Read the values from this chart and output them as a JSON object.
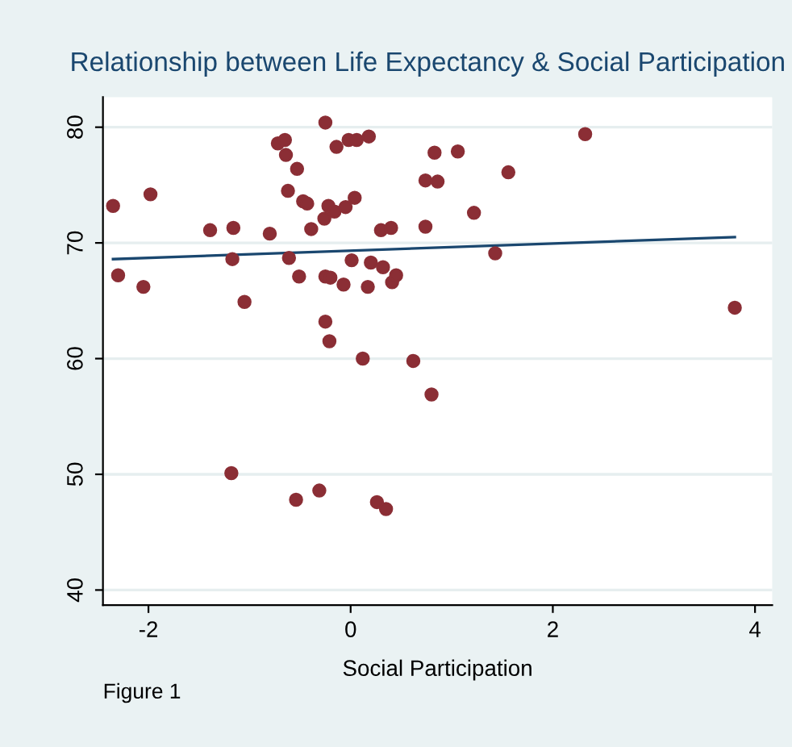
{
  "chart_data": {
    "type": "scatter",
    "title": "Relationship between Life Expectancy & Social Participation",
    "xlabel": "Social Participation",
    "annotations": [
      "Figure 1"
    ],
    "xlim": [
      -2.45,
      4.17
    ],
    "ylim": [
      38.7,
      82.6
    ],
    "xticks": [
      -2,
      0,
      2,
      4
    ],
    "yticks": [
      40,
      50,
      60,
      70,
      80
    ],
    "grid": "y",
    "legend": false,
    "marker": "circle",
    "series": [
      {
        "color": "#8b2e35",
        "x": [
          -2.35,
          -1.98,
          -2.3,
          -2.05,
          -1.39,
          -1.16,
          -1.17,
          -1.05,
          -0.8,
          -0.72,
          -0.65,
          -0.64,
          -0.53,
          -0.62,
          -0.47,
          -0.43,
          -0.61,
          -0.51,
          -0.39,
          -0.25,
          -0.26,
          -0.22,
          -0.16,
          -0.14,
          -0.25,
          -0.2,
          -0.25,
          -0.21,
          -0.05,
          0.04,
          -0.02,
          0.06,
          0.18,
          -0.07,
          0.01,
          0.17,
          0.2,
          0.3,
          0.4,
          0.32,
          0.41,
          0.45,
          0.12,
          0.62,
          0.74,
          0.74,
          0.83,
          0.86,
          1.06,
          1.22,
          1.56,
          1.43,
          2.32,
          3.8,
          -1.18,
          -0.54,
          -0.31,
          0.26,
          0.35,
          0.8
        ],
        "values": [
          73.2,
          74.2,
          67.2,
          66.2,
          71.1,
          71.3,
          68.6,
          64.9,
          70.8,
          78.6,
          78.9,
          77.6,
          76.4,
          74.5,
          73.6,
          73.4,
          68.7,
          67.1,
          71.2,
          80.4,
          72.1,
          73.2,
          72.7,
          78.3,
          67.1,
          67.0,
          63.2,
          61.5,
          73.1,
          73.9,
          78.9,
          78.9,
          79.2,
          66.4,
          68.5,
          66.2,
          68.3,
          71.1,
          71.3,
          67.9,
          66.6,
          67.2,
          60.0,
          59.8,
          75.4,
          71.4,
          77.8,
          75.3,
          77.9,
          72.6,
          76.1,
          69.1,
          79.4,
          64.4,
          50.1,
          47.8,
          48.6,
          47.6,
          47.0,
          56.9
        ]
      },
      {
        "type": "line",
        "color": "#1a476f",
        "marker": "none",
        "x": [
          -2.35,
          3.8
        ],
        "values": [
          68.6,
          70.5
        ]
      }
    ]
  }
}
